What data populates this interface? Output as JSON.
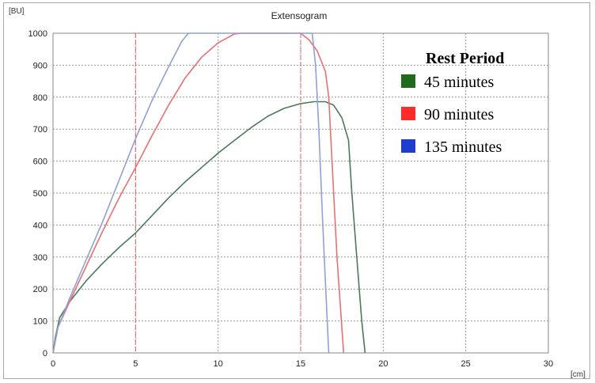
{
  "chart_data": {
    "type": "line",
    "title": "Extensogram",
    "y_unit": "[BU]",
    "x_unit": "[cm]",
    "xlim": [
      0,
      30
    ],
    "ylim": [
      0,
      1000
    ],
    "x_ticks": [
      0,
      5,
      10,
      15,
      20,
      25,
      30
    ],
    "y_ticks": [
      0,
      100,
      200,
      300,
      400,
      500,
      600,
      700,
      800,
      900,
      1000
    ],
    "grid": true,
    "reference_lines_x": [
      5,
      15
    ],
    "reference_color": "#e06060",
    "legend": {
      "title": "Rest Period",
      "position": "top-right"
    },
    "series": [
      {
        "name": "45 minutes",
        "color": "#4a7a5a",
        "swatch": "#1e6b1e",
        "points": [
          [
            0,
            0
          ],
          [
            0.15,
            50
          ],
          [
            0.4,
            110
          ],
          [
            1,
            160
          ],
          [
            2,
            225
          ],
          [
            3,
            280
          ],
          [
            4,
            330
          ],
          [
            5,
            375
          ],
          [
            6,
            430
          ],
          [
            7,
            485
          ],
          [
            8,
            535
          ],
          [
            9,
            580
          ],
          [
            10,
            625
          ],
          [
            11,
            665
          ],
          [
            12,
            705
          ],
          [
            13,
            740
          ],
          [
            14,
            765
          ],
          [
            15,
            780
          ],
          [
            15.8,
            786
          ],
          [
            16.5,
            786
          ],
          [
            17,
            775
          ],
          [
            17.5,
            735
          ],
          [
            17.9,
            665
          ],
          [
            18.1,
            500
          ],
          [
            18.4,
            300
          ],
          [
            18.7,
            100
          ],
          [
            18.9,
            0
          ]
        ]
      },
      {
        "name": "90 minutes",
        "color": "#e87070",
        "swatch": "#ff2a2a",
        "points": [
          [
            0,
            0
          ],
          [
            0.3,
            80
          ],
          [
            1,
            160
          ],
          [
            2,
            270
          ],
          [
            3,
            380
          ],
          [
            4,
            485
          ],
          [
            5,
            580
          ],
          [
            6,
            680
          ],
          [
            7,
            775
          ],
          [
            8,
            860
          ],
          [
            9,
            925
          ],
          [
            10,
            970
          ],
          [
            11,
            998
          ],
          [
            11.5,
            1000
          ],
          [
            15,
            1000
          ],
          [
            15.5,
            980
          ],
          [
            16,
            945
          ],
          [
            16.5,
            880
          ],
          [
            16.7,
            800
          ],
          [
            16.85,
            650
          ],
          [
            17,
            500
          ],
          [
            17.2,
            300
          ],
          [
            17.4,
            150
          ],
          [
            17.6,
            0
          ]
        ]
      },
      {
        "name": "135 minutes",
        "color": "#8fa0d8",
        "swatch": "#1e3ccf",
        "points": [
          [
            0,
            0
          ],
          [
            0.3,
            80
          ],
          [
            1,
            170
          ],
          [
            2,
            290
          ],
          [
            3,
            410
          ],
          [
            4,
            540
          ],
          [
            5,
            670
          ],
          [
            6,
            790
          ],
          [
            7,
            895
          ],
          [
            7.8,
            975
          ],
          [
            8.2,
            1000
          ],
          [
            15.7,
            1000
          ],
          [
            15.9,
            900
          ],
          [
            16.1,
            700
          ],
          [
            16.3,
            450
          ],
          [
            16.5,
            220
          ],
          [
            16.7,
            0
          ]
        ]
      }
    ]
  }
}
